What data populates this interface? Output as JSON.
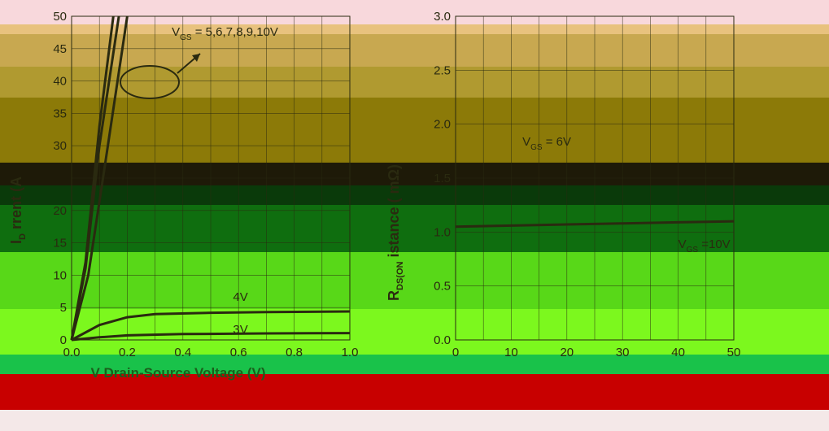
{
  "colors": {
    "band_pink": "#f8d8dc",
    "band_tan_light": "#e8c27e",
    "band_tan": "#c8a850",
    "band_olive": "#a08a18",
    "band_olive_dark": "#7a6a00",
    "band_black": "#101010",
    "band_green_dark": "#0a4a0a",
    "band_green": "#0f6e0f",
    "band_lime": "#58d818",
    "band_lime_bright": "#7cf81e",
    "band_green_mid": "#19c24a",
    "band_red": "#c80000",
    "curve": "#2a2a10",
    "grid": "#2a2a10"
  },
  "chart_data": [
    {
      "type": "line",
      "title": "",
      "xlabel": "V    Drain-Source Voltage (V)",
      "ylabel": "I   Current (A)",
      "ylabel_letter": "I",
      "ylabel_sub": "D",
      "ylabel_text": "rrent (A",
      "xlim": [
        0.0,
        1.0
      ],
      "ylim": [
        0,
        50
      ],
      "xticks": [
        0.0,
        0.2,
        0.4,
        0.6,
        0.8,
        1.0
      ],
      "xtick_labels": [
        "0.0",
        "0.2",
        "0.4",
        "0.6",
        "0.8",
        "1.0"
      ],
      "yticks": [
        0,
        5,
        10,
        15,
        20,
        25,
        30,
        35,
        40,
        45,
        50
      ],
      "ytick_labels": [
        "0",
        "5",
        "10",
        "15",
        "20",
        "",
        "30",
        "35",
        "40",
        "45",
        "50"
      ],
      "grid": true,
      "annotations": [
        {
          "text": "V  = 5,6,7,8,9,10V",
          "sub": "GS",
          "x": 0.36,
          "y": 47
        },
        {
          "text": "4V",
          "x": 0.58,
          "y": 6
        },
        {
          "text": "3V",
          "x": 0.58,
          "y": 1
        }
      ],
      "series": [
        {
          "label": "V_GS = 5,6,7,8,9,10V (a)",
          "x": [
            0.0,
            0.05,
            0.1,
            0.15
          ],
          "y": [
            0,
            12,
            33,
            50
          ]
        },
        {
          "label": "V_GS = 5,6,7,8,9,10V (b)",
          "x": [
            0.0,
            0.05,
            0.1,
            0.17
          ],
          "y": [
            0,
            11,
            30,
            50
          ]
        },
        {
          "label": "V_GS = 5,6,7,8,9,10V (c)",
          "x": [
            0.0,
            0.06,
            0.12,
            0.2
          ],
          "y": [
            0,
            10,
            27,
            50
          ]
        },
        {
          "label": "4V",
          "x": [
            0.0,
            0.1,
            0.2,
            0.3,
            0.5,
            0.7,
            1.0
          ],
          "y": [
            0,
            2.3,
            3.5,
            4.0,
            4.2,
            4.3,
            4.4
          ]
        },
        {
          "label": "3V",
          "x": [
            0.0,
            0.1,
            0.2,
            0.4,
            0.7,
            1.0
          ],
          "y": [
            0,
            0.4,
            0.7,
            0.9,
            1.0,
            1.05
          ]
        }
      ]
    },
    {
      "type": "line",
      "title": "",
      "xlabel": "",
      "ylabel": "R   istance (mΩ)",
      "ylabel_letter": "R",
      "ylabel_sub": "DS(ON",
      "ylabel_text": "istance (",
      "ylabel_unit": "mΩ)",
      "xlim": [
        0,
        50
      ],
      "ylim": [
        0.0,
        3.0
      ],
      "xticks": [
        0,
        10,
        20,
        30,
        40,
        50
      ],
      "xtick_labels": [
        "0",
        "10",
        "20",
        "30",
        "40",
        "50"
      ],
      "yticks": [
        0.0,
        0.5,
        1.0,
        1.5,
        2.0,
        2.5,
        3.0
      ],
      "ytick_labels": [
        "0.0",
        "0.5",
        "1.0",
        "1.5",
        "2.0",
        "2.5",
        "3.0"
      ],
      "grid": true,
      "annotations": [
        {
          "text": "V  = 6V",
          "sub": "GS",
          "x": 12,
          "y": 1.8
        },
        {
          "text": "V  =10V",
          "sub": "GS",
          "x": 40,
          "y": 0.85
        }
      ],
      "series": [
        {
          "label": "V_GS = 6V",
          "x": [
            0,
            10,
            20,
            30,
            40,
            50
          ],
          "y": [
            1.05,
            1.06,
            1.07,
            1.08,
            1.09,
            1.1
          ]
        }
      ]
    }
  ]
}
